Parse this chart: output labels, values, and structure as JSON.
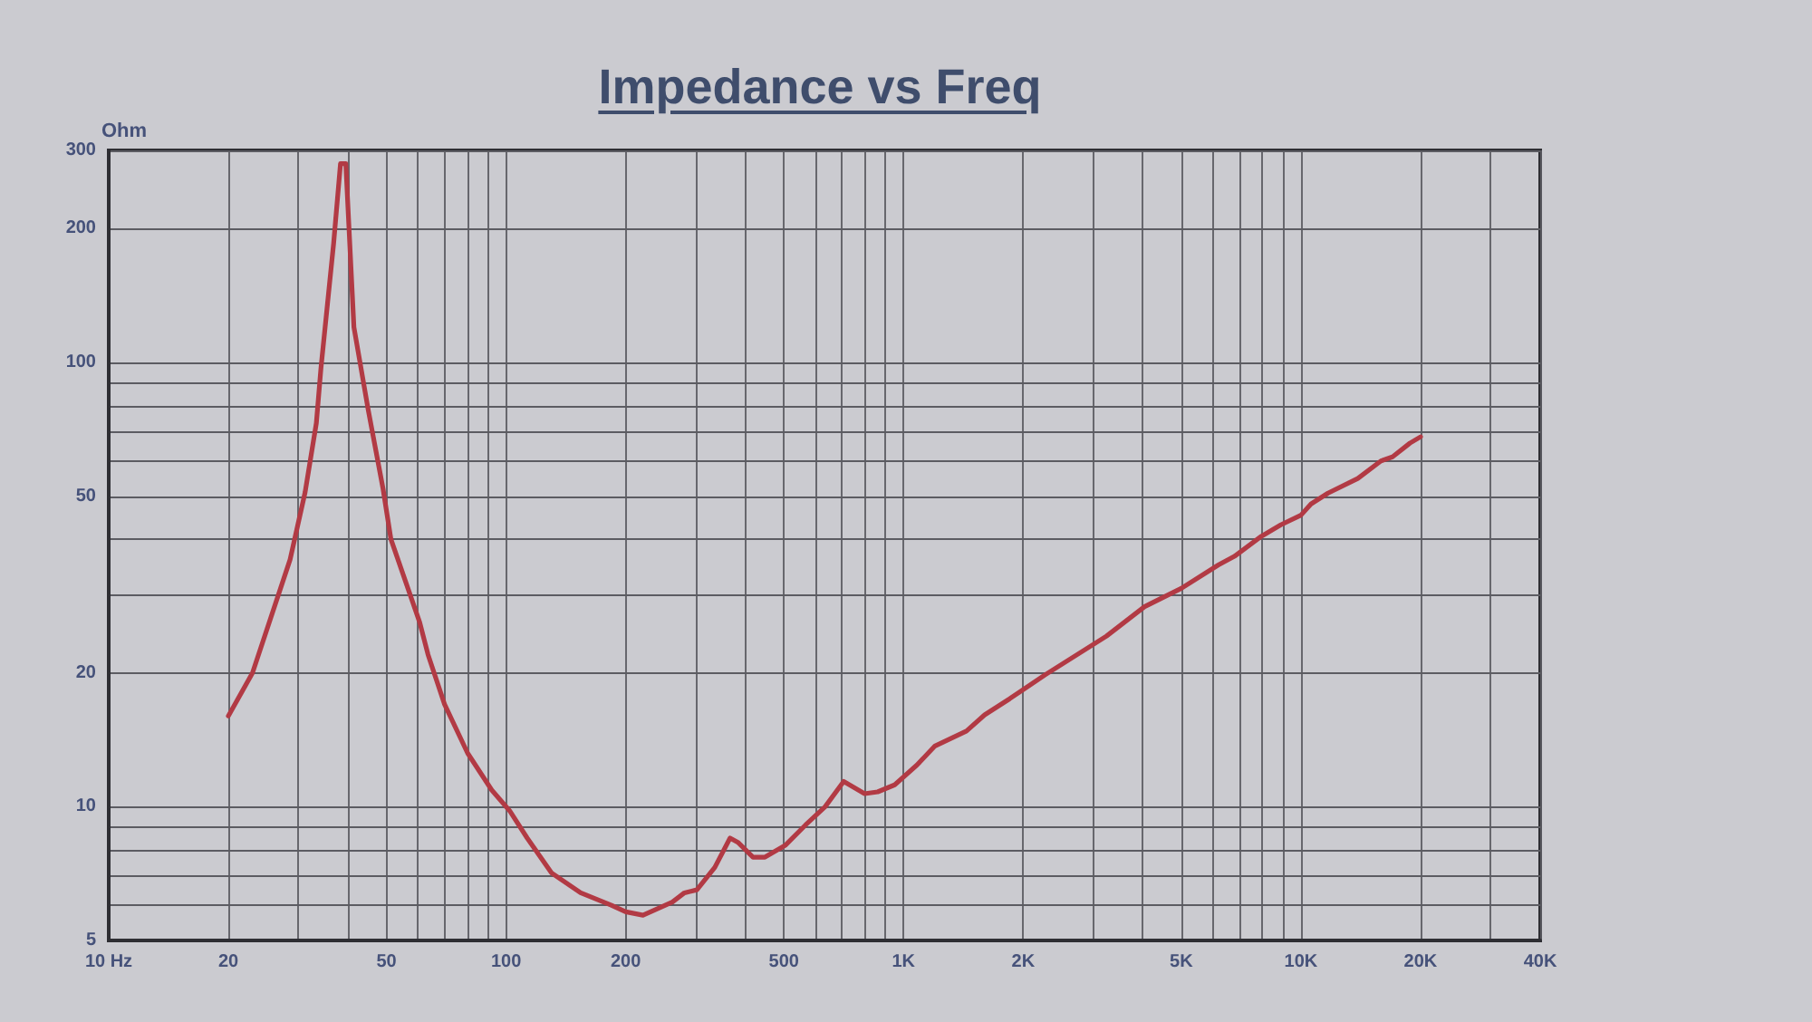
{
  "chart_data": {
    "type": "line",
    "title": "Impedance vs Freq",
    "ylabel": "Ohm",
    "x": [
      20,
      23,
      28.6,
      31.2,
      33.3,
      34.2,
      36.8,
      38.3,
      39.5,
      41.4,
      45,
      49,
      51.3,
      60.6,
      63.6,
      70,
      80,
      92,
      102,
      113,
      130,
      154,
      184,
      200,
      221,
      262,
      281,
      302,
      335,
      366,
      384,
      418,
      448,
      505,
      567,
      635,
      707,
      798,
      861,
      950,
      1080,
      1200,
      1440,
      1600,
      1850,
      2270,
      3240,
      4040,
      5000,
      6200,
      6800,
      7950,
      8900,
      10000,
      10600,
      11700,
      13900,
      15900,
      17000,
      18800,
      20000
    ],
    "values": [
      16,
      20,
      36,
      51,
      73,
      97,
      185,
      280,
      280,
      120,
      78,
      52,
      40,
      26,
      22,
      17,
      13.2,
      10.9,
      9.8,
      8.5,
      7.1,
      6.4,
      6.0,
      5.8,
      5.7,
      6.1,
      6.4,
      6.5,
      7.3,
      8.5,
      8.3,
      7.7,
      7.7,
      8.2,
      9.1,
      10,
      11.4,
      10.7,
      10.8,
      11.2,
      12.4,
      13.7,
      14.8,
      16.1,
      17.5,
      19.8,
      24.2,
      28.2,
      31,
      35,
      36.6,
      40.6,
      43.1,
      45.3,
      48,
      50.8,
      54.8,
      60,
      61.3,
      65.8,
      68
    ],
    "color": "#b23a44",
    "xlim": [
      10,
      40000
    ],
    "xticks": [
      {
        "value": 10,
        "label": "10 Hz"
      },
      20,
      {
        "value": 30,
        "label": null
      },
      {
        "value": 40,
        "label": null
      },
      50,
      {
        "value": 60,
        "label": null
      },
      {
        "value": 70,
        "label": null
      },
      {
        "value": 80,
        "label": null
      },
      {
        "value": 90,
        "label": null
      },
      100,
      200,
      {
        "value": 300,
        "label": null
      },
      {
        "value": 400,
        "label": null
      },
      500,
      {
        "value": 600,
        "label": null
      },
      {
        "value": 700,
        "label": null
      },
      {
        "value": 800,
        "label": null
      },
      {
        "value": 900,
        "label": null
      },
      {
        "value": 1000,
        "label": "1K"
      },
      {
        "value": 2000,
        "label": "2K"
      },
      {
        "value": 3000,
        "label": null
      },
      {
        "value": 4000,
        "label": null
      },
      {
        "value": 5000,
        "label": "5K"
      },
      {
        "value": 6000,
        "label": null
      },
      {
        "value": 7000,
        "label": null
      },
      {
        "value": 8000,
        "label": null
      },
      {
        "value": 9000,
        "label": null
      },
      {
        "value": 10000,
        "label": "10K"
      },
      {
        "value": 20000,
        "label": "20K"
      },
      {
        "value": 30000,
        "label": null
      },
      {
        "value": 40000,
        "label": "40K"
      }
    ],
    "ylim": [
      5,
      300
    ],
    "yticks": [
      5,
      {
        "value": 6,
        "label": null
      },
      {
        "value": 7,
        "label": null
      },
      {
        "value": 8,
        "label": null
      },
      {
        "value": 9,
        "label": null
      },
      10,
      20,
      {
        "value": 30,
        "label": null
      },
      {
        "value": 40,
        "label": null
      },
      50,
      {
        "value": 60,
        "label": null
      },
      {
        "value": 70,
        "label": null
      },
      {
        "value": 80,
        "label": null
      },
      {
        "value": 90,
        "label": null
      },
      100,
      200,
      300
    ],
    "log": "xy",
    "grid": true,
    "marker": "none",
    "line_style": "solid"
  }
}
